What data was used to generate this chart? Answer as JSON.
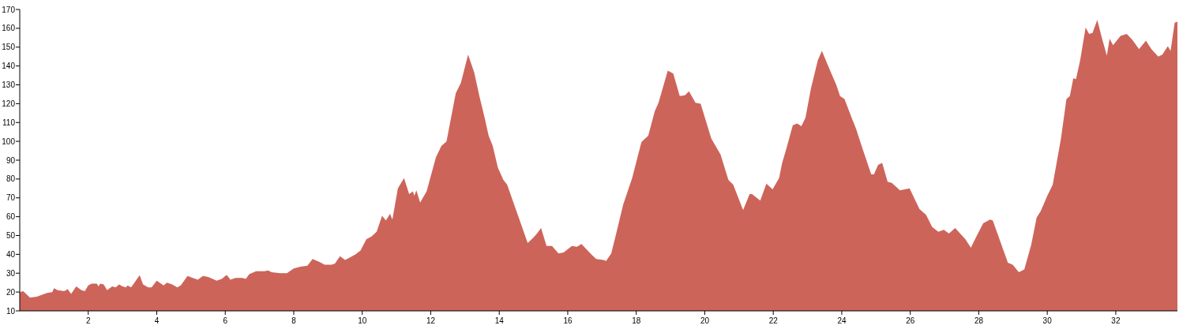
{
  "chart_data": {
    "type": "area",
    "xlim": [
      0,
      33.8
    ],
    "ylim": [
      10,
      170
    ],
    "xticks": [
      2,
      4,
      6,
      8,
      10,
      12,
      14,
      16,
      18,
      20,
      22,
      24,
      26,
      28,
      30,
      32
    ],
    "yticks": [
      10,
      20,
      30,
      40,
      50,
      60,
      70,
      80,
      90,
      100,
      110,
      120,
      130,
      140,
      150,
      160,
      170
    ],
    "grid": false,
    "series": [
      {
        "color": "#cd645a",
        "x": [
          0,
          0.1,
          0.3,
          0.5,
          0.8,
          0.95,
          1.0,
          1.1,
          1.3,
          1.4,
          1.5,
          1.65,
          1.8,
          1.9,
          2.0,
          2.1,
          2.25,
          2.3,
          2.35,
          2.45,
          2.55,
          2.7,
          2.8,
          2.9,
          3.0,
          3.1,
          3.15,
          3.25,
          3.35,
          3.5,
          3.6,
          3.75,
          3.85,
          4.0,
          4.2,
          4.3,
          4.45,
          4.6,
          4.7,
          4.9,
          5.05,
          5.2,
          5.35,
          5.5,
          5.75,
          5.9,
          6.0,
          6.05,
          6.15,
          6.3,
          6.5,
          6.6,
          6.7,
          6.9,
          7.0,
          7.15,
          7.25,
          7.35,
          7.6,
          7.8,
          8.0,
          8.2,
          8.4,
          8.55,
          8.75,
          8.9,
          9.1,
          9.2,
          9.35,
          9.5,
          9.6,
          9.8,
          9.95,
          10.12,
          10.27,
          10.42,
          10.58,
          10.69,
          10.81,
          10.88,
          11.04,
          11.22,
          11.37,
          11.48,
          11.52,
          11.58,
          11.69,
          11.88,
          12.15,
          12.31,
          12.46,
          12.73,
          12.88,
          13.09,
          13.27,
          13.42,
          13.58,
          13.69,
          13.81,
          13.96,
          14.12,
          14.23,
          14.54,
          14.83,
          15.0,
          15.12,
          15.22,
          15.38,
          15.54,
          15.73,
          15.88,
          16.12,
          16.27,
          16.4,
          16.69,
          16.83,
          17.04,
          17.12,
          17.27,
          17.42,
          17.62,
          17.88,
          18.15,
          18.23,
          18.35,
          18.54,
          18.65,
          18.77,
          18.92,
          19.08,
          19.27,
          19.42,
          19.54,
          19.73,
          19.88,
          20.19,
          20.46,
          20.69,
          20.83,
          21.12,
          21.31,
          21.38,
          21.62,
          21.8,
          21.98,
          22.17,
          22.26,
          22.38,
          22.57,
          22.7,
          22.82,
          22.94,
          23.1,
          23.3,
          23.42,
          23.66,
          23.84,
          23.95,
          24.08,
          24.3,
          24.42,
          24.58,
          24.86,
          24.94,
          25.06,
          25.18,
          25.34,
          25.46,
          25.7,
          25.98,
          26.27,
          26.46,
          26.64,
          26.82,
          26.98,
          27.13,
          27.31,
          27.61,
          27.77,
          27.93,
          28.13,
          28.33,
          28.41,
          28.85,
          28.99,
          29.17,
          29.33,
          29.53,
          29.69,
          29.81,
          30.0,
          30.16,
          30.4,
          30.56,
          30.66,
          30.76,
          30.84,
          30.96,
          31.12,
          31.22,
          31.32,
          31.46,
          31.6,
          31.74,
          31.82,
          31.92,
          32.14,
          32.32,
          32.48,
          32.68,
          32.88,
          33.04,
          33.24,
          33.36,
          33.52,
          33.6,
          33.72,
          33.8
        ],
        "values": [
          20,
          20.5,
          17,
          17.5,
          19.5,
          20,
          22,
          21,
          20.5,
          21.5,
          19,
          23,
          21,
          20.5,
          23.5,
          24.5,
          24.5,
          23,
          24.5,
          24,
          21,
          23,
          22.5,
          24,
          23,
          22.5,
          23.5,
          22.5,
          25,
          29,
          24,
          22.5,
          22.5,
          26,
          23.5,
          25,
          24,
          22.5,
          23.5,
          28.5,
          27.5,
          26.5,
          28.5,
          28,
          26,
          27,
          28.5,
          29,
          26.5,
          27.5,
          27.5,
          27,
          29.5,
          31,
          31,
          31,
          31.5,
          30.5,
          30,
          30,
          32.5,
          33.5,
          34,
          37.5,
          36,
          34.5,
          34.5,
          35,
          39,
          37,
          38,
          40,
          42,
          48,
          49.5,
          52,
          60.5,
          58,
          61.5,
          58.5,
          75,
          80.5,
          72,
          73.5,
          71,
          74,
          67.5,
          73.5,
          91.5,
          97.5,
          100,
          125.5,
          131,
          146,
          136.5,
          124,
          112,
          103,
          97.5,
          86,
          79.5,
          77,
          61,
          46,
          49,
          51.5,
          54,
          44.5,
          44.5,
          40.5,
          41,
          44.5,
          44,
          45.5,
          40,
          37.5,
          37,
          36.5,
          40.5,
          51.5,
          66.5,
          80.5,
          99.5,
          101,
          103,
          116,
          120.5,
          128,
          137.5,
          136,
          124,
          124.5,
          126.5,
          120.5,
          120,
          101.5,
          93,
          79.5,
          77,
          63.5,
          72,
          72,
          68.5,
          77.5,
          74.5,
          80.5,
          88.5,
          96,
          108.5,
          109.5,
          108,
          112.5,
          128,
          143,
          148,
          137.5,
          130,
          124,
          122.5,
          112,
          106.5,
          97.5,
          82.5,
          82.5,
          87.5,
          88.5,
          78.5,
          78,
          74,
          75,
          64,
          61,
          54.5,
          52,
          53,
          51,
          54,
          48,
          43.5,
          49.5,
          56.5,
          58.5,
          58,
          35.5,
          34.5,
          30.5,
          32,
          45,
          59.5,
          63,
          71,
          77,
          101.5,
          122.5,
          124,
          133.5,
          133,
          143,
          160.5,
          157,
          157.5,
          164.5,
          154.5,
          145.5,
          154.5,
          151,
          156,
          157,
          154,
          149,
          153.5,
          149,
          145,
          146,
          150.5,
          148,
          163,
          163.5
        ]
      }
    ]
  }
}
